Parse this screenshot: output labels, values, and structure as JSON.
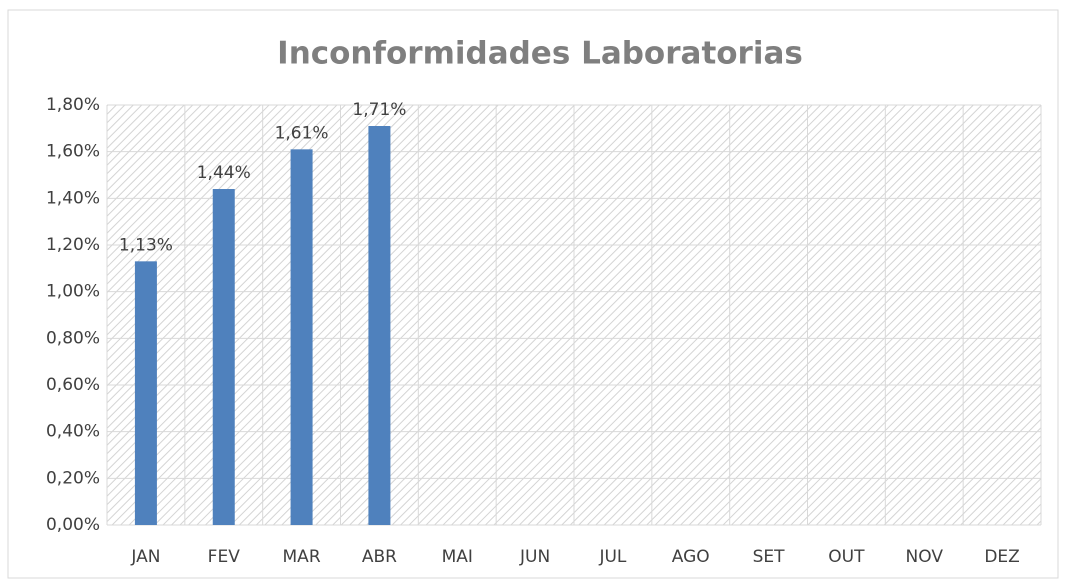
{
  "chart_data": {
    "type": "bar",
    "title": "Inconformidades Laboratorias",
    "categories": [
      "JAN",
      "FEV",
      "MAR",
      "ABR",
      "MAI",
      "JUN",
      "JUL",
      "AGO",
      "SET",
      "OUT",
      "NOV",
      "DEZ"
    ],
    "values": [
      1.13,
      1.44,
      1.61,
      1.71,
      null,
      null,
      null,
      null,
      null,
      null,
      null,
      null
    ],
    "value_labels": [
      "1,13%",
      "1,44%",
      "1,61%",
      "1,71%",
      null,
      null,
      null,
      null,
      null,
      null,
      null,
      null
    ],
    "color": "#4f81bd",
    "ylim": [
      0,
      1.8
    ],
    "yticks": [
      {
        "value": 0,
        "label": "0,00%"
      },
      {
        "value": 0.2,
        "label": "0,20%"
      },
      {
        "value": 0.4,
        "label": "0,40%"
      },
      {
        "value": 0.6,
        "label": "0,60%"
      },
      {
        "value": 0.8,
        "label": "0,80%"
      },
      {
        "value": 1.0,
        "label": "1,00%"
      },
      {
        "value": 1.2,
        "label": "1,20%"
      },
      {
        "value": 1.4,
        "label": "1,40%"
      },
      {
        "value": 1.6,
        "label": "1,60%"
      },
      {
        "value": 1.8,
        "label": "1,80%"
      }
    ],
    "grid": true
  }
}
